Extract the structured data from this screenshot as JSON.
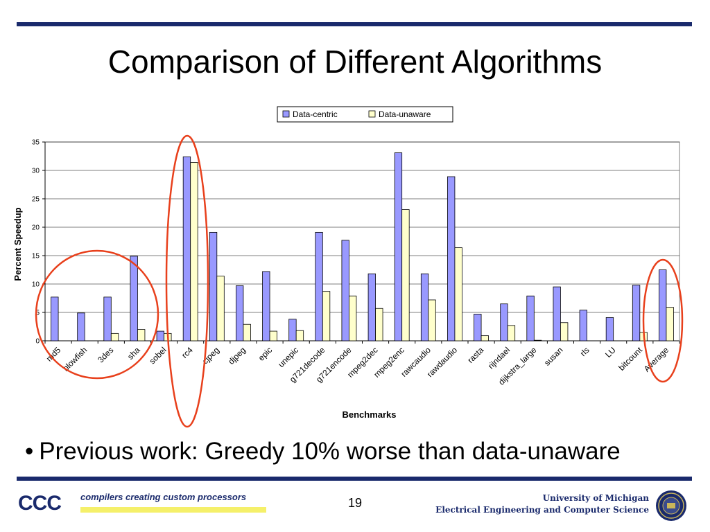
{
  "slide": {
    "title": "Comparison of Different Algorithms",
    "bullet": "Previous work: Greedy 10% worse than data-unaware",
    "page_number": "19",
    "footer_logo": "CCC",
    "footer_tagline": "compilers creating custom processors",
    "footer_uni_line1": "University of Michigan",
    "footer_uni_line2": "Electrical Engineering and Computer Science"
  },
  "colors": {
    "rule": "#1a2a6c",
    "data_centric": "#9999ff",
    "data_unaware": "#ffffcc",
    "highlight": "#e8401c"
  },
  "chart_data": {
    "type": "bar",
    "title": "",
    "xlabel": "Benchmarks",
    "ylabel": "Percent Speedup",
    "ylim": [
      0,
      35
    ],
    "yticks": [
      0,
      5,
      10,
      15,
      20,
      25,
      30,
      35
    ],
    "grid": true,
    "legend": "top-right",
    "categories": [
      "md5",
      "blowfish",
      "3des",
      "sha",
      "sobel",
      "rc4",
      "cjpeg",
      "djpeg",
      "epic",
      "unepic",
      "g721decode",
      "g721encode",
      "mpeg2dec",
      "mpeg2enc",
      "rawcaudio",
      "rawdaudio",
      "rasta",
      "rijndael",
      "dijkstra_large",
      "susan",
      "rls",
      "LU",
      "bitcount",
      "Average"
    ],
    "series": [
      {
        "name": "Data-centric",
        "color": "#9999ff",
        "values": [
          7.7,
          4.9,
          7.7,
          14.9,
          1.7,
          32.4,
          19.1,
          9.7,
          12.2,
          3.8,
          19.1,
          17.7,
          11.8,
          33.1,
          11.8,
          28.9,
          4.7,
          6.5,
          7.9,
          9.5,
          5.4,
          4.1,
          9.8,
          12.5
        ]
      },
      {
        "name": "Data-unaware",
        "color": "#ffffcc",
        "values": [
          0,
          0,
          1.3,
          2.0,
          1.3,
          31.4,
          11.4,
          2.9,
          1.7,
          1.8,
          8.7,
          7.9,
          5.7,
          23.1,
          7.2,
          16.4,
          0.9,
          2.7,
          0.1,
          3.2,
          0,
          0,
          1.5,
          5.9
        ]
      }
    ]
  }
}
